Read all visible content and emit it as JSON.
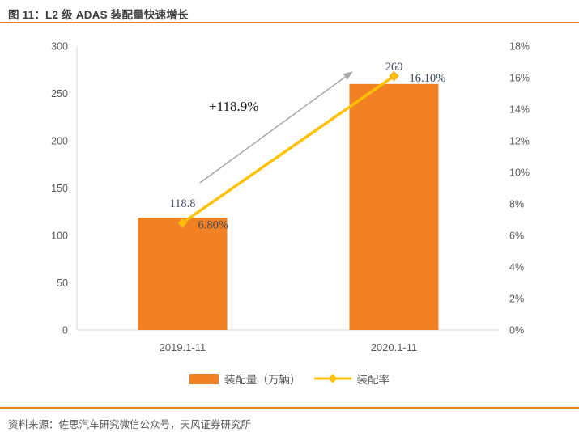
{
  "header": {
    "title": "图 11：L2 级 ADAS 装配量快速增长"
  },
  "footer": {
    "source": "资料来源：佐思汽车研究微信公众号，天风证券研究所"
  },
  "theme": {
    "accent_line": "#EE7E1F",
    "bar_color": "#F28123",
    "line_color": "#FFC000",
    "arrow_color": "#ABABAB",
    "axis_color": "#D9D9D9",
    "tick_text": "#595959",
    "data_label_text": "#414B5C"
  },
  "chart_data": {
    "type": "bar",
    "subtype": "bar-line-combo",
    "title": "图 11：L2 级 ADAS 装配量快速增长",
    "categories": [
      "2019.1-11",
      "2020.1-11"
    ],
    "series": [
      {
        "name": "装配量（万辆）",
        "type": "bar",
        "axis": "left",
        "values": [
          118.8,
          260
        ],
        "labels": [
          "118.8",
          "260"
        ],
        "color": "#F28123"
      },
      {
        "name": "装配率",
        "type": "line",
        "axis": "right",
        "values": [
          6.8,
          16.1
        ],
        "labels": [
          "6.80%",
          "16.10%"
        ],
        "color": "#FFC000"
      }
    ],
    "annotation": {
      "text": "+118.9%"
    },
    "y_left": {
      "min": 0,
      "max": 300,
      "step": 50,
      "ticks": [
        "0",
        "50",
        "100",
        "150",
        "200",
        "250",
        "300"
      ]
    },
    "y_right": {
      "min": 0,
      "max": 18,
      "step": 2,
      "ticks": [
        "0%",
        "2%",
        "4%",
        "6%",
        "8%",
        "10%",
        "12%",
        "14%",
        "16%",
        "18%"
      ]
    },
    "grid": false,
    "legend_position": "bottom",
    "xlabel": "",
    "ylabel_left": "",
    "ylabel_right": ""
  }
}
